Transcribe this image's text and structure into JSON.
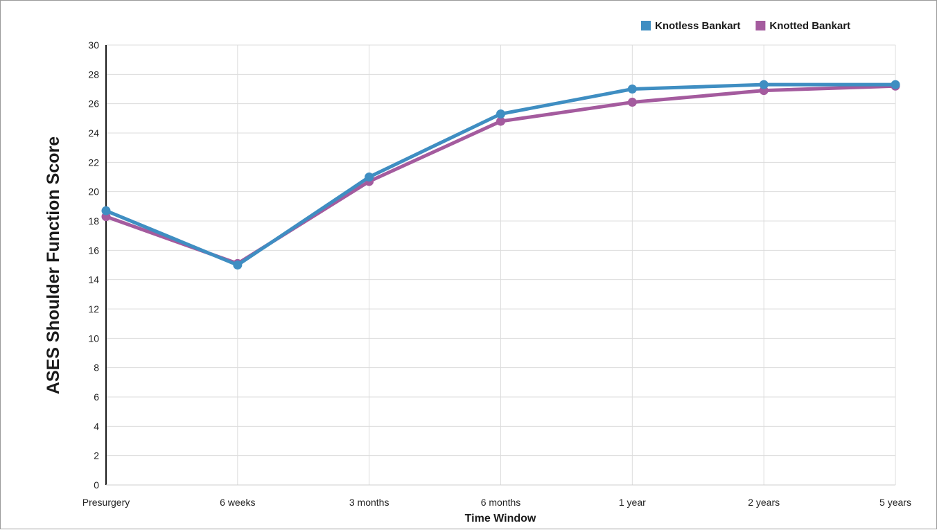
{
  "chart_data": {
    "type": "line",
    "xlabel": "Time Window",
    "ylabel": "ASES Shoulder Function Score",
    "categories": [
      "Presurgery",
      "6 weeks",
      "3 months",
      "6 months",
      "1 year",
      "2 years",
      "5 years"
    ],
    "ylim": [
      0,
      30
    ],
    "yticks": [
      0,
      2,
      4,
      6,
      8,
      10,
      12,
      14,
      16,
      18,
      20,
      22,
      24,
      26,
      28,
      30
    ],
    "grid": true,
    "legend_position": "top-right",
    "series": [
      {
        "name": "Knotless Bankart",
        "color": "#3f8ec2",
        "values": [
          18.7,
          15.0,
          21.0,
          25.3,
          27.0,
          27.3,
          27.3
        ]
      },
      {
        "name": "Knotted Bankart",
        "color": "#a45b9e",
        "values": [
          18.3,
          15.1,
          20.7,
          24.8,
          26.1,
          26.9,
          27.2
        ]
      }
    ]
  }
}
